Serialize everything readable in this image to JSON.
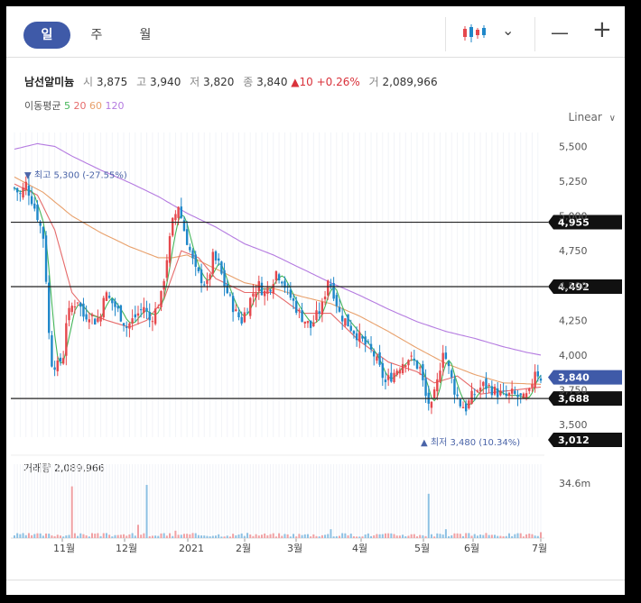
{
  "tabs": {
    "day": "일",
    "week": "주",
    "month": "월"
  },
  "toolbar": {
    "candle_icon": "candlestick-icon",
    "chevron": "⌄",
    "zoom_out": "—",
    "zoom_in": "+"
  },
  "stock": {
    "name": "남선알미늄",
    "open_label": "시",
    "open": "3,875",
    "high_label": "고",
    "high": "3,940",
    "low_label": "저",
    "low": "3,820",
    "close_label": "종",
    "close": "3,840",
    "change": "▲10",
    "change_pct": "+0.26%",
    "volume_label": "거",
    "volume": "2,089,966"
  },
  "moving_average": {
    "label": "이동평균",
    "p5": "5",
    "p20": "20",
    "p60": "60",
    "p120": "120"
  },
  "scale_mode": "Linear",
  "colors": {
    "up": "#e5484d",
    "down": "#1f87c9",
    "ma5": "#45b65a",
    "ma20": "#e66b6b",
    "ma60": "#e8a06b",
    "ma120": "#b47ae0",
    "accent": "#3f5aa8"
  },
  "chart_data": {
    "type": "candlestick",
    "y_range": [
      3410,
      5600
    ],
    "y_ticks": [
      "5,500",
      "5,250",
      "5,000",
      "4,750",
      "4,500",
      "4,250",
      "4,000",
      "3,750",
      "3,500"
    ],
    "x_labels": [
      "11월",
      "12월",
      "2021",
      "2월",
      "3월",
      "4월",
      "5월",
      "6월",
      "7월"
    ],
    "high_annotation": "최고 5,300 (-27.55%)",
    "low_annotation": "최저 3,480 (10.34%)",
    "price_levels": [
      {
        "label": "4,955",
        "value": 4955
      },
      {
        "label": "4,492",
        "value": 4492
      },
      {
        "label": "3,688",
        "value": 3688
      }
    ],
    "current_price": {
      "label": "3,840",
      "value": 3840
    },
    "extra_level": {
      "label": "3,012"
    },
    "close_path": [
      [
        0,
        5200
      ],
      [
        2,
        5150
      ],
      [
        4,
        5230
      ],
      [
        6,
        5120
      ],
      [
        8,
        5000
      ],
      [
        10,
        4850
      ],
      [
        11,
        4550
      ],
      [
        12,
        4150
      ],
      [
        13,
        3950
      ],
      [
        15,
        3920
      ],
      [
        17,
        4000
      ],
      [
        18,
        4250
      ],
      [
        20,
        4350
      ],
      [
        22,
        4400
      ],
      [
        24,
        4280
      ],
      [
        26,
        4300
      ],
      [
        28,
        4250
      ],
      [
        30,
        4280
      ],
      [
        31,
        4450
      ],
      [
        33,
        4400
      ],
      [
        35,
        4350
      ],
      [
        37,
        4280
      ],
      [
        39,
        4200
      ],
      [
        41,
        4250
      ],
      [
        43,
        4300
      ],
      [
        45,
        4350
      ],
      [
        47,
        4250
      ],
      [
        49,
        4320
      ],
      [
        51,
        4420
      ],
      [
        53,
        4700
      ],
      [
        55,
        4950
      ],
      [
        57,
        5080
      ],
      [
        59,
        4900
      ],
      [
        61,
        4750
      ],
      [
        63,
        4600
      ],
      [
        65,
        4550
      ],
      [
        67,
        4500
      ],
      [
        69,
        4700
      ],
      [
        71,
        4650
      ],
      [
        73,
        4500
      ],
      [
        75,
        4400
      ],
      [
        77,
        4300
      ],
      [
        79,
        4250
      ],
      [
        81,
        4350
      ],
      [
        83,
        4450
      ],
      [
        85,
        4500
      ],
      [
        87,
        4450
      ],
      [
        89,
        4500
      ],
      [
        91,
        4600
      ],
      [
        93,
        4550
      ],
      [
        95,
        4450
      ],
      [
        97,
        4380
      ],
      [
        99,
        4300
      ],
      [
        101,
        4250
      ],
      [
        103,
        4200
      ],
      [
        105,
        4280
      ],
      [
        107,
        4350
      ],
      [
        109,
        4550
      ],
      [
        111,
        4450
      ],
      [
        113,
        4300
      ],
      [
        115,
        4250
      ],
      [
        117,
        4200
      ],
      [
        119,
        4150
      ],
      [
        121,
        4100
      ],
      [
        123,
        4050
      ],
      [
        125,
        4000
      ],
      [
        127,
        3900
      ],
      [
        129,
        3800
      ],
      [
        131,
        3850
      ],
      [
        133,
        3900
      ],
      [
        135,
        3950
      ],
      [
        137,
        3980
      ],
      [
        139,
        3950
      ],
      [
        141,
        3900
      ],
      [
        143,
        3700
      ],
      [
        145,
        3620
      ],
      [
        147,
        3800
      ],
      [
        149,
        4050
      ],
      [
        151,
        3900
      ],
      [
        153,
        3750
      ],
      [
        155,
        3650
      ],
      [
        157,
        3620
      ],
      [
        159,
        3700
      ],
      [
        161,
        3750
      ],
      [
        163,
        3780
      ],
      [
        165,
        3770
      ],
      [
        167,
        3740
      ],
      [
        169,
        3720
      ],
      [
        171,
        3700
      ],
      [
        173,
        3720
      ],
      [
        175,
        3700
      ],
      [
        177,
        3680
      ],
      [
        179,
        3720
      ],
      [
        181,
        3900
      ],
      [
        183,
        3840
      ]
    ],
    "ma120": [
      [
        0,
        5480
      ],
      [
        8,
        5520
      ],
      [
        14,
        5500
      ],
      [
        20,
        5430
      ],
      [
        30,
        5330
      ],
      [
        40,
        5240
      ],
      [
        50,
        5140
      ],
      [
        60,
        5020
      ],
      [
        70,
        4920
      ],
      [
        80,
        4800
      ],
      [
        90,
        4720
      ],
      [
        100,
        4620
      ],
      [
        110,
        4520
      ],
      [
        120,
        4430
      ],
      [
        130,
        4330
      ],
      [
        140,
        4240
      ],
      [
        150,
        4170
      ],
      [
        160,
        4120
      ],
      [
        170,
        4060
      ],
      [
        178,
        4020
      ],
      [
        183,
        4000
      ]
    ],
    "ma60": [
      [
        0,
        5280
      ],
      [
        10,
        5170
      ],
      [
        20,
        5000
      ],
      [
        30,
        4880
      ],
      [
        40,
        4780
      ],
      [
        50,
        4700
      ],
      [
        55,
        4700
      ],
      [
        60,
        4720
      ],
      [
        70,
        4620
      ],
      [
        80,
        4520
      ],
      [
        90,
        4480
      ],
      [
        100,
        4420
      ],
      [
        110,
        4370
      ],
      [
        120,
        4280
      ],
      [
        130,
        4170
      ],
      [
        140,
        4050
      ],
      [
        150,
        3940
      ],
      [
        160,
        3860
      ],
      [
        170,
        3800
      ],
      [
        183,
        3790
      ]
    ],
    "ma20": [
      [
        0,
        5230
      ],
      [
        8,
        5150
      ],
      [
        14,
        4900
      ],
      [
        20,
        4450
      ],
      [
        26,
        4300
      ],
      [
        32,
        4250
      ],
      [
        40,
        4200
      ],
      [
        46,
        4250
      ],
      [
        52,
        4400
      ],
      [
        58,
        4750
      ],
      [
        64,
        4700
      ],
      [
        70,
        4550
      ],
      [
        80,
        4450
      ],
      [
        90,
        4450
      ],
      [
        100,
        4300
      ],
      [
        110,
        4300
      ],
      [
        120,
        4100
      ],
      [
        130,
        3950
      ],
      [
        140,
        3880
      ],
      [
        146,
        3800
      ],
      [
        154,
        3850
      ],
      [
        162,
        3720
      ],
      [
        170,
        3740
      ],
      [
        183,
        3770
      ]
    ],
    "volume_max_label": "34.6m",
    "volume_title": "거래량 2,089,966",
    "volume_spikes": [
      [
        20,
        0.7
      ],
      [
        46,
        0.72
      ],
      [
        144,
        0.6
      ],
      [
        43,
        0.18
      ],
      [
        110,
        0.12
      ],
      [
        56,
        0.1
      ],
      [
        150,
        0.12
      ],
      [
        183,
        0.08
      ]
    ]
  }
}
